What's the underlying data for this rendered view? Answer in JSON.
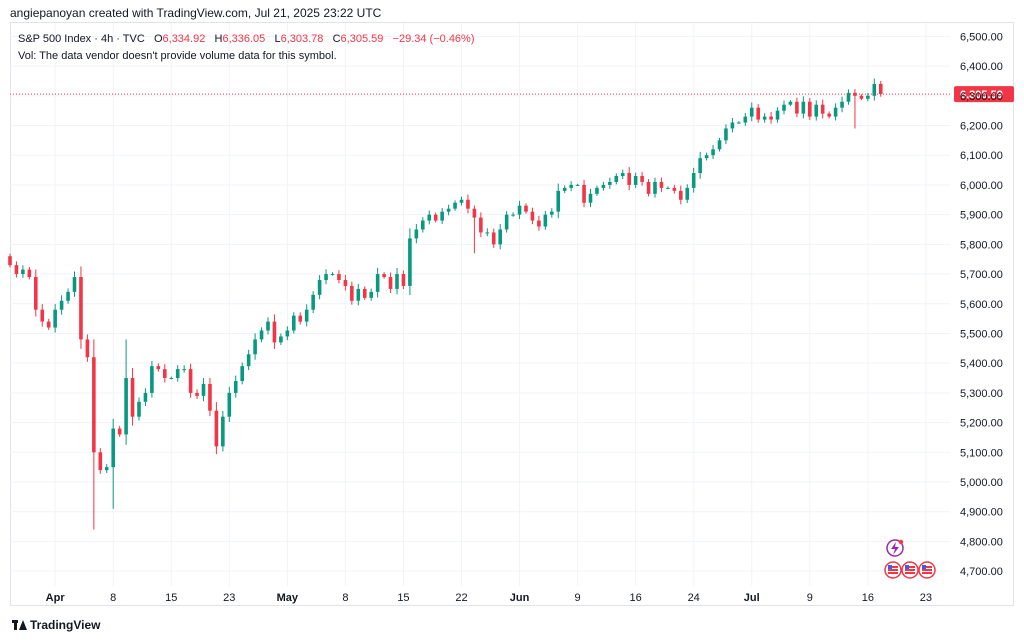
{
  "header": {
    "creator": "angiepanoyan created with TradingView.com, Jul 21, 2025 23:22 UTC"
  },
  "legend": {
    "symbol": "S&P 500 Index · 4h · TVC",
    "open_label": "O",
    "open": "6,334.92",
    "high_label": "H",
    "high": "6,336.05",
    "low_label": "L",
    "low": "6,303.78",
    "close_label": "C",
    "close": "6,305.59",
    "change": "−29.34 (−0.46%)",
    "volume_note": "Vol: The data vendor doesn't provide volume data for this symbol."
  },
  "footer": {
    "brand": "TradingView"
  },
  "colors": {
    "up": "#089981",
    "down": "#f23645",
    "grid": "#f0f3fa",
    "text": "#131722"
  },
  "chart_data": {
    "type": "candlestick",
    "ylim": [
      4650,
      6545
    ],
    "y_ticks": [
      4700,
      4800,
      4900,
      5000,
      5100,
      5200,
      5300,
      5400,
      5500,
      5600,
      5700,
      5800,
      5900,
      6000,
      6100,
      6200,
      6300,
      6400,
      6500
    ],
    "y_tick_labels": [
      "4,700.00",
      "4,800.00",
      "4,900.00",
      "5,000.00",
      "5,100.00",
      "5,200.00",
      "5,300.00",
      "5,400.00",
      "5,500.00",
      "5,600.00",
      "5,700.00",
      "5,800.00",
      "5,900.00",
      "6,000.00",
      "6,100.00",
      "6,200.00",
      "6,300.00",
      "6,400.00",
      "6,500.00"
    ],
    "x_ticks": [
      {
        "label": "Apr",
        "bold": true,
        "i": 7
      },
      {
        "label": "8",
        "bold": false,
        "i": 16
      },
      {
        "label": "15",
        "bold": false,
        "i": 25
      },
      {
        "label": "23",
        "bold": false,
        "i": 34
      },
      {
        "label": "May",
        "bold": true,
        "i": 43
      },
      {
        "label": "8",
        "bold": false,
        "i": 52
      },
      {
        "label": "15",
        "bold": false,
        "i": 61
      },
      {
        "label": "22",
        "bold": false,
        "i": 70
      },
      {
        "label": "Jun",
        "bold": true,
        "i": 79
      },
      {
        "label": "9",
        "bold": false,
        "i": 88
      },
      {
        "label": "16",
        "bold": false,
        "i": 97
      },
      {
        "label": "24",
        "bold": false,
        "i": 106
      },
      {
        "label": "Jul",
        "bold": true,
        "i": 115
      },
      {
        "label": "9",
        "bold": false,
        "i": 124
      },
      {
        "label": "16",
        "bold": false,
        "i": 133
      },
      {
        "label": "23",
        "bold": false,
        "i": 142
      }
    ],
    "last_price": 6305.59,
    "last_price_label": "6,305.59",
    "closes": [
      5730,
      5700,
      5715,
      5690,
      5580,
      5540,
      5520,
      5580,
      5610,
      5640,
      5690,
      5480,
      5420,
      5100,
      5040,
      5050,
      5180,
      5160,
      5350,
      5220,
      5270,
      5300,
      5390,
      5380,
      5350,
      5350,
      5380,
      5380,
      5300,
      5290,
      5330,
      5240,
      5120,
      5220,
      5300,
      5340,
      5390,
      5430,
      5480,
      5510,
      5540,
      5470,
      5490,
      5510,
      5560,
      5540,
      5580,
      5630,
      5680,
      5700,
      5700,
      5680,
      5660,
      5610,
      5650,
      5620,
      5640,
      5700,
      5690,
      5650,
      5700,
      5660,
      5820,
      5850,
      5880,
      5900,
      5880,
      5910,
      5920,
      5940,
      5950,
      5920,
      5890,
      5840,
      5840,
      5800,
      5850,
      5900,
      5900,
      5930,
      5910,
      5880,
      5860,
      5900,
      5910,
      5980,
      5990,
      6000,
      6000,
      5940,
      5970,
      5990,
      6000,
      6010,
      6030,
      6040,
      6000,
      6030,
      6010,
      5970,
      6010,
      5990,
      5990,
      5980,
      5950,
      5990,
      6040,
      6090,
      6100,
      6120,
      6150,
      6190,
      6210,
      6210,
      6230,
      6260,
      6220,
      6230,
      6220,
      6250,
      6270,
      6280,
      6240,
      6280,
      6230,
      6270,
      6240,
      6230,
      6260,
      6280,
      6310,
      6300,
      6290,
      6300,
      6340,
      6306
    ],
    "wick_extremes": [
      {
        "i": 13,
        "low": 4840
      },
      {
        "i": 16,
        "low": 4910
      },
      {
        "i": 18,
        "high": 5480
      },
      {
        "i": 72,
        "low": 5770
      },
      {
        "i": 131,
        "low": 6190
      }
    ]
  }
}
